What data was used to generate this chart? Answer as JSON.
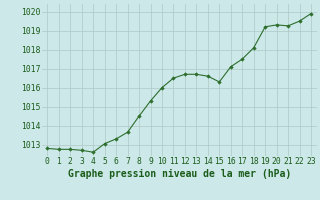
{
  "x": [
    0,
    1,
    2,
    3,
    4,
    5,
    6,
    7,
    8,
    9,
    10,
    11,
    12,
    13,
    14,
    15,
    16,
    17,
    18,
    19,
    20,
    21,
    22,
    23
  ],
  "y": [
    1012.8,
    1012.75,
    1012.75,
    1012.7,
    1012.6,
    1013.05,
    1013.3,
    1013.65,
    1014.5,
    1015.3,
    1016.0,
    1016.5,
    1016.7,
    1016.7,
    1016.6,
    1016.3,
    1017.1,
    1017.5,
    1018.1,
    1019.2,
    1019.3,
    1019.25,
    1019.5,
    1019.9
  ],
  "line_color": "#2d6e2d",
  "marker_color": "#2d6e2d",
  "bg_color": "#cce8e8",
  "grid_color": "#aec8c8",
  "title": "Graphe pression niveau de la mer (hPa)",
  "ylabel_vals": [
    1013,
    1014,
    1015,
    1016,
    1017,
    1018,
    1019,
    1020
  ],
  "ylim": [
    1012.4,
    1020.4
  ],
  "xlim": [
    -0.5,
    23.5
  ],
  "title_color": "#1a5c1a",
  "title_fontsize": 7.0,
  "tick_fontsize": 5.8,
  "figwidth": 3.2,
  "figheight": 2.0,
  "dpi": 100
}
